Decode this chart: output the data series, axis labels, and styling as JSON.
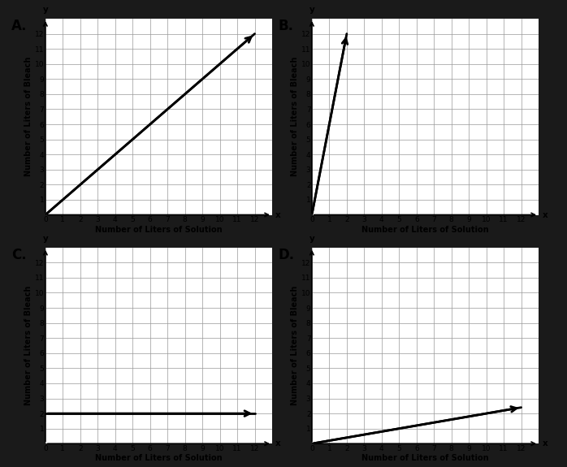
{
  "background_color": "#1a1a1a",
  "panel_bg": "#ffffff",
  "grid_color": "#999999",
  "line_color": "#000000",
  "text_color": "#000000",
  "label_fontsize": 7,
  "tick_fontsize": 6.5,
  "panel_label_fontsize": 12,
  "xlabel": "Number of Liters of Solution",
  "ylabel": "Number of Liters of Bleach",
  "xlim": [
    0,
    13
  ],
  "ylim": [
    0,
    13
  ],
  "xticks": [
    0,
    1,
    2,
    3,
    4,
    5,
    6,
    7,
    8,
    9,
    10,
    11,
    12
  ],
  "yticks": [
    1,
    2,
    3,
    4,
    5,
    6,
    7,
    8,
    9,
    10,
    11,
    12
  ],
  "panels": [
    "A",
    "B",
    "C",
    "D"
  ],
  "lines": {
    "A": {
      "x0": 0,
      "y0": 0,
      "x1": 12,
      "y1": 12
    },
    "B": {
      "x0": 0,
      "y0": 0,
      "x1": 2,
      "y1": 12
    },
    "C": {
      "x0": 0,
      "y0": 2,
      "x1": 12,
      "y1": 2
    },
    "D": {
      "x0": 0,
      "y0": 0,
      "x1": 12,
      "y1": 2.4
    }
  }
}
